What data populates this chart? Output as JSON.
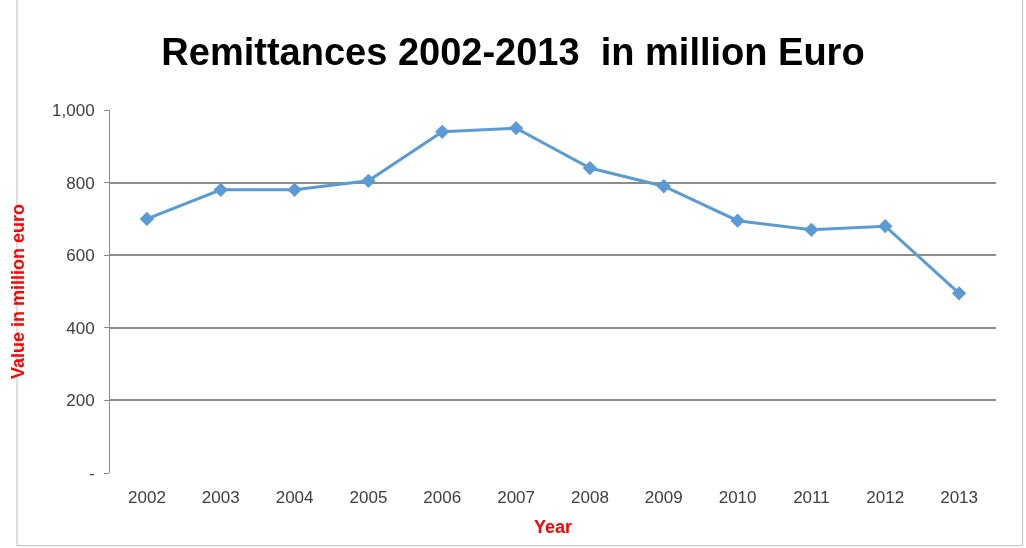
{
  "chart_data": {
    "type": "line",
    "title": "Remittances 2002-2013  in million Euro",
    "xlabel": "Year",
    "ylabel": "Value in million euro",
    "categories": [
      "2002",
      "2003",
      "2004",
      "2005",
      "2006",
      "2007",
      "2008",
      "2009",
      "2010",
      "2011",
      "2012",
      "2013"
    ],
    "series": [
      {
        "color": "#5b9bd5",
        "values": [
          700,
          780,
          780,
          805,
          940,
          950,
          840,
          790,
          695,
          670,
          680,
          495
        ]
      }
    ],
    "ylim": [
      0,
      1000
    ],
    "yticks": [
      {
        "value": 0,
        "label": "-"
      },
      200,
      400,
      600,
      800,
      {
        "value": 1000,
        "label": "1,000"
      }
    ],
    "grid": "y",
    "marker": "diamond",
    "line_style": "solid",
    "legend": false
  }
}
